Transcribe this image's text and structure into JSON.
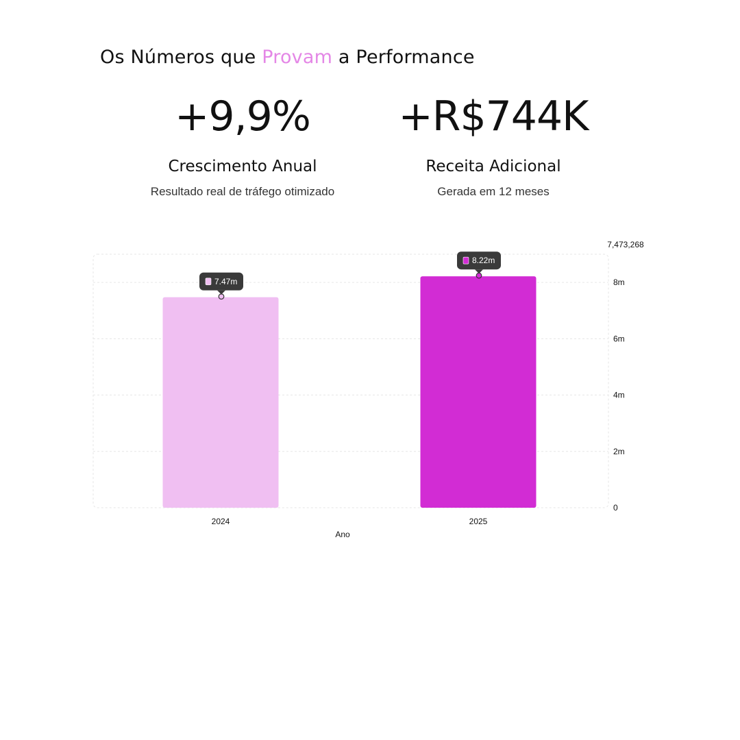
{
  "headline": {
    "before": "Os Números que ",
    "accent": "Provam",
    "after": " a Performance",
    "accent_color": "#e487e6"
  },
  "stats": [
    {
      "value": "+9,9%",
      "label": "Crescimento Anual",
      "sub": "Resultado real de tráfego otimizado"
    },
    {
      "value": "+R$744K",
      "label": "Receita Adicional",
      "sub": "Gerada em 12 meses"
    }
  ],
  "chart_data": {
    "type": "bar",
    "categories": [
      "2024",
      "2025"
    ],
    "values": [
      7473268,
      8217000
    ],
    "bar_colors": [
      "#f0bff2",
      "#d22cd4"
    ],
    "value_labels": [
      "7.47m",
      "8.22m"
    ],
    "xlabel": "Ano",
    "ylabel": "",
    "y_ticks": [
      {
        "value": 0,
        "label": "0"
      },
      {
        "value": 2000000,
        "label": "2m"
      },
      {
        "value": 4000000,
        "label": "4m"
      },
      {
        "value": 6000000,
        "label": "6m"
      },
      {
        "value": 8000000,
        "label": "8m"
      }
    ],
    "ylim": [
      0,
      9000000
    ],
    "reference_label": "7,473,268",
    "grid": true,
    "axis_side": "right"
  }
}
